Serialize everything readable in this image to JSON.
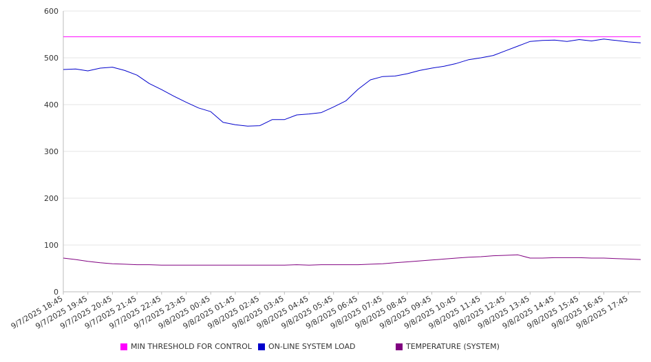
{
  "chart_data": {
    "type": "line",
    "y_ticks": [
      "0",
      "100",
      "200",
      "300",
      "400",
      "500",
      "600"
    ],
    "ylim": [
      0,
      600
    ],
    "grid": true,
    "legend_placement": "bottom",
    "x_tick_labels": [
      "9/7/2025 18:45",
      "9/7/2025 19:45",
      "9/7/2025 20:45",
      "9/7/2025 21:45",
      "9/7/2025 22:45",
      "9/7/2025 23:45",
      "9/8/2025 00:45",
      "9/8/2025 01:45",
      "9/8/2025 02:45",
      "9/8/2025 03:45",
      "9/8/2025 04:45",
      "9/8/2025 05:45",
      "9/8/2025 06:45",
      "9/8/2025 07:45",
      "9/8/2025 08:45",
      "9/8/2025 09:45",
      "9/8/2025 10:45",
      "9/8/2025 11:45",
      "9/8/2025 12:45",
      "9/8/2025 13:45",
      "9/8/2025 14:45",
      "9/8/2025 15:45",
      "9/8/2025 16:45",
      "9/8/2025 17:45"
    ],
    "x": [
      "18:45",
      "19:15",
      "19:45",
      "20:15",
      "20:45",
      "21:15",
      "21:45",
      "22:15",
      "22:45",
      "23:15",
      "23:45",
      "00:15",
      "00:45",
      "01:15",
      "01:45",
      "02:15",
      "02:45",
      "03:15",
      "03:45",
      "04:15",
      "04:45",
      "05:15",
      "05:45",
      "06:15",
      "06:45",
      "07:15",
      "07:45",
      "08:15",
      "08:45",
      "09:15",
      "09:45",
      "10:15",
      "10:45",
      "11:15",
      "11:45",
      "12:15",
      "12:45",
      "13:15",
      "13:45",
      "14:15",
      "14:45",
      "15:15",
      "15:45",
      "16:15",
      "16:45",
      "17:15",
      "17:45",
      "18:15"
    ],
    "series": [
      {
        "name": "MIN THRESHOLD FOR CONTROL",
        "color": "#ff00ff",
        "values": [
          545,
          545,
          545,
          545,
          545,
          545,
          545,
          545,
          545,
          545,
          545,
          545,
          545,
          545,
          545,
          545,
          545,
          545,
          545,
          545,
          545,
          545,
          545,
          545,
          545,
          545,
          545,
          545,
          545,
          545,
          545,
          545,
          545,
          545,
          545,
          545,
          545,
          545,
          545,
          545,
          545,
          545,
          545,
          545,
          545,
          545,
          545,
          545
        ]
      },
      {
        "name": "ON-LINE SYSTEM LOAD",
        "color": "#0000cc",
        "values": [
          475,
          476,
          472,
          478,
          480,
          473,
          463,
          445,
          432,
          418,
          405,
          393,
          385,
          362,
          357,
          354,
          355,
          368,
          368,
          378,
          380,
          383,
          395,
          408,
          433,
          453,
          460,
          461,
          466,
          473,
          478,
          482,
          488,
          496,
          500,
          505,
          515,
          525,
          535,
          537,
          538,
          535,
          539,
          536,
          540,
          537,
          534,
          532
        ]
      },
      {
        "name": "TEMPERATURE (SYSTEM)",
        "color": "#800080",
        "values": [
          72,
          69,
          65,
          62,
          60,
          59,
          58,
          58,
          57,
          57,
          57,
          57,
          57,
          57,
          57,
          57,
          57,
          57,
          57,
          58,
          57,
          58,
          58,
          58,
          58,
          59,
          60,
          62,
          64,
          66,
          68,
          70,
          72,
          74,
          75,
          77,
          78,
          79,
          72,
          72,
          73,
          73,
          73,
          72,
          72,
          71,
          70,
          69
        ]
      }
    ]
  }
}
